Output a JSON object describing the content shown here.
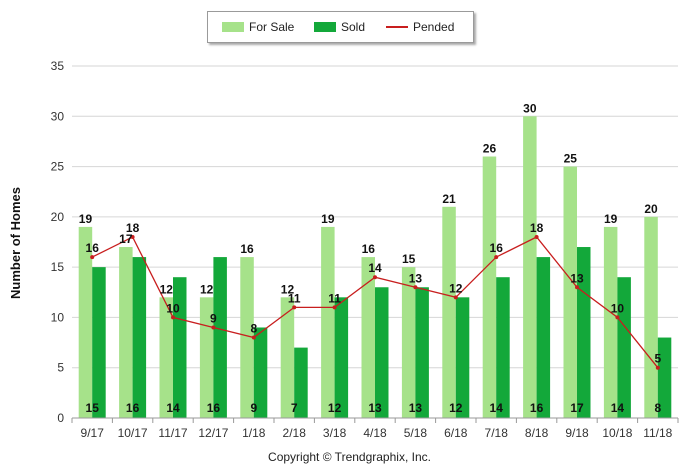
{
  "legend": {
    "for_sale": "For Sale",
    "sold": "Sold",
    "pended": "Pended"
  },
  "footer": "Copyright © Trendgraphix, Inc.",
  "colors": {
    "for_sale": "#a6e28a",
    "sold": "#13a83a",
    "pended": "#c81e1e",
    "grid": "#d6d6d6"
  },
  "chart_data": {
    "type": "bar",
    "ylabel": "Number of Homes",
    "ylim": [
      0,
      35
    ],
    "yticks": [
      0,
      5,
      10,
      15,
      20,
      25,
      30,
      35
    ],
    "grid": true,
    "legend_position": "top",
    "categories": [
      "9/17",
      "10/17",
      "11/17",
      "12/17",
      "1/18",
      "2/18",
      "3/18",
      "4/18",
      "5/18",
      "6/18",
      "7/18",
      "8/18",
      "9/18",
      "10/18",
      "11/18"
    ],
    "series": [
      {
        "name": "For Sale",
        "kind": "bar",
        "values": [
          19,
          17,
          12,
          12,
          16,
          12,
          19,
          16,
          15,
          21,
          26,
          30,
          25,
          19,
          20
        ]
      },
      {
        "name": "Sold",
        "kind": "bar",
        "values": [
          15,
          16,
          14,
          16,
          9,
          7,
          12,
          13,
          13,
          12,
          14,
          16,
          17,
          14,
          8
        ]
      },
      {
        "name": "Pended",
        "kind": "line",
        "values": [
          16,
          18,
          10,
          9,
          8,
          11,
          11,
          14,
          13,
          12,
          16,
          18,
          13,
          10,
          5
        ]
      }
    ]
  }
}
